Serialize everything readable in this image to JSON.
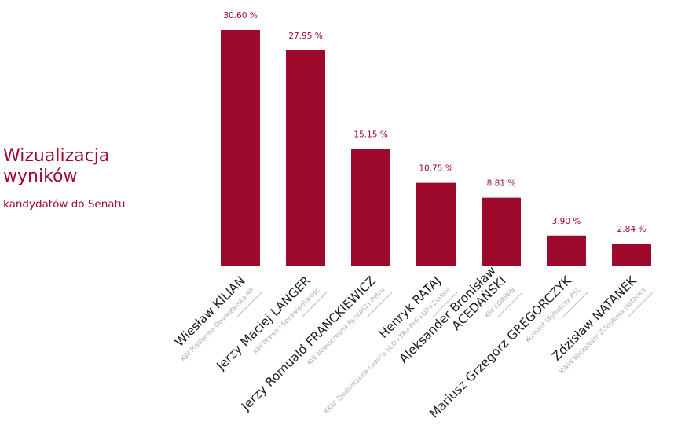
{
  "sidebar": {
    "title_line1": "Wizualizacja",
    "title_line2": "wyników",
    "subtitle": "kandydatów do Senatu"
  },
  "colors": {
    "accent": "#9e0a2c",
    "bar": "#9e0a2c",
    "axis": "#bbbbbb",
    "name_text": "#1a1a1a",
    "party_text": "#b0b0b0"
  },
  "chart_data": {
    "type": "bar",
    "title": "",
    "xlabel": "",
    "ylabel": "",
    "grid": false,
    "legend": "none",
    "ylim": [
      0,
      30.6
    ],
    "bars": [
      {
        "name_lines": [
          "Wiesław KILIAN"
        ],
        "party": "KW Platforma Obywatelska RP",
        "value": 30.6,
        "label": "30.60 %"
      },
      {
        "name_lines": [
          "Jerzy Maciej LANGER"
        ],
        "party": "KW Prawo i Sprawiedliwość",
        "value": 27.95,
        "label": "27.95 %"
      },
      {
        "name_lines": [
          "Jerzy Romuald FRANCKIEWICZ"
        ],
        "party": "KW Nowoczesna Ryszarda Petru",
        "value": 15.15,
        "label": "15.15 %"
      },
      {
        "name_lines": [
          "Henryk RATAJ"
        ],
        "party": "KKW Zjednoczona Lewica SLD+TR+PPS+UP+Zieloni",
        "value": 10.75,
        "label": "10.75 %"
      },
      {
        "name_lines": [
          "Aleksander Bronisław",
          "ACEDAŃSKI"
        ],
        "party": "KW KORWiN",
        "value": 8.81,
        "label": "8.81 %"
      },
      {
        "name_lines": [
          "Mariusz Grzegorz GREGORCZYK"
        ],
        "party": "Komitet Wyborczy PSL",
        "value": 3.9,
        "label": "3.90 %"
      },
      {
        "name_lines": [
          "Zdzisław NATANEK"
        ],
        "party": "KWW Niezależni Zdzisława Natanka",
        "value": 2.84,
        "label": "2.84 %"
      }
    ]
  }
}
